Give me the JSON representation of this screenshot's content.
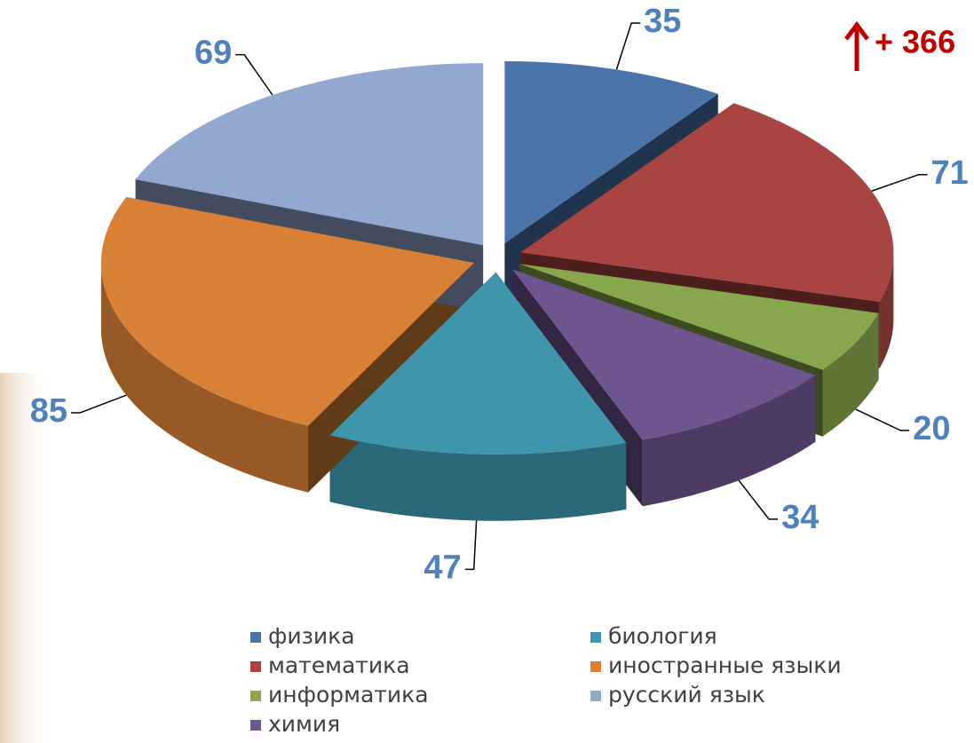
{
  "chart_data": {
    "type": "pie",
    "categories": [
      "физика",
      "математика",
      "информатика",
      "химия",
      "биология",
      "иностранные языки",
      "русский язык"
    ],
    "values": [
      35,
      71,
      20,
      34,
      47,
      85,
      69
    ],
    "colors": [
      "#4a74aa",
      "#a84441",
      "#88a64b",
      "#6f558f",
      "#3f96ac",
      "#d88036",
      "#92a8d0"
    ],
    "annotation": "+ 366"
  }
}
